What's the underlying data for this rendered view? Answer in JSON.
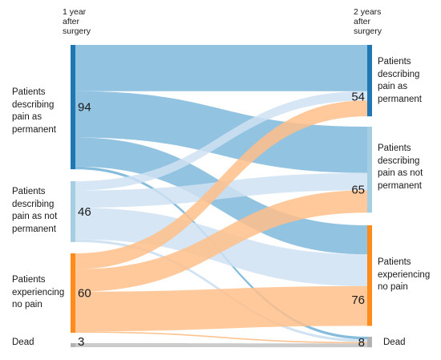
{
  "headers": {
    "left": "1 year\nafter\nsurgery",
    "right": "2 years\nafter\nsurgery"
  },
  "left_nodes": [
    {
      "label": "Patients\ndescribing\npain as\npermanent",
      "value": 94,
      "color": "#1f78b4"
    },
    {
      "label": "Patients\ndescribing\npain as not\npermanent",
      "value": 46,
      "color": "#a6cee3"
    },
    {
      "label": "Patients\nexperiencing\nno pain",
      "value": 60,
      "color": "#ff8c1a"
    },
    {
      "label": "Dead",
      "value": 3,
      "color": "#b3b3b3"
    }
  ],
  "right_nodes": [
    {
      "label": "Patients\ndescribing\npain as\npermanent",
      "value": 54,
      "color": "#1f78b4"
    },
    {
      "label": "Patients\ndescribing\npain as not\npermanent",
      "value": 65,
      "color": "#a6cee3"
    },
    {
      "label": "Patients\nexperiencing\nno pain",
      "value": 76,
      "color": "#ff8c1a"
    },
    {
      "label": "Dead",
      "value": 8,
      "color": "#b3b3b3"
    }
  ],
  "flows": [
    {
      "from": 0,
      "to": 0,
      "value": 35,
      "color": "#7fb8da"
    },
    {
      "from": 0,
      "to": 1,
      "value": 35,
      "color": "#7fb8da"
    },
    {
      "from": 0,
      "to": 2,
      "value": 22,
      "color": "#7fb8da"
    },
    {
      "from": 0,
      "to": 3,
      "value": 2,
      "color": "#7fb8da"
    },
    {
      "from": 1,
      "to": 0,
      "value": 7,
      "color": "#cfe2f2"
    },
    {
      "from": 1,
      "to": 1,
      "value": 13,
      "color": "#cfe2f2"
    },
    {
      "from": 1,
      "to": 2,
      "value": 24,
      "color": "#cfe2f2"
    },
    {
      "from": 1,
      "to": 3,
      "value": 2,
      "color": "#cfe2f2"
    },
    {
      "from": 2,
      "to": 0,
      "value": 12,
      "color": "#ffc08a"
    },
    {
      "from": 2,
      "to": 1,
      "value": 17,
      "color": "#ffc08a"
    },
    {
      "from": 2,
      "to": 2,
      "value": 30,
      "color": "#ffc08a"
    },
    {
      "from": 2,
      "to": 3,
      "value": 1,
      "color": "#ffc08a"
    },
    {
      "from": 3,
      "to": 3,
      "value": 3,
      "color": "#c8c8c8"
    }
  ]
}
